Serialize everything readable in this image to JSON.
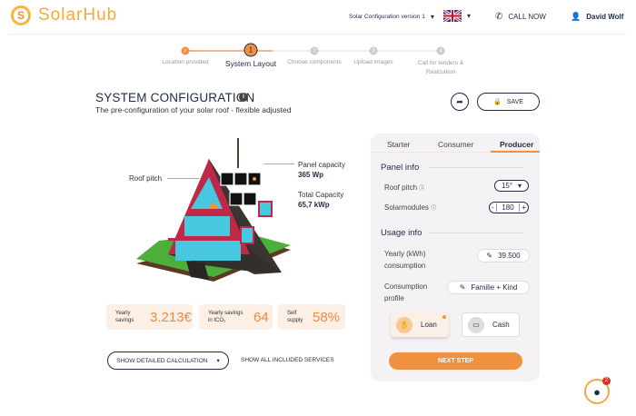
{
  "header": {
    "logo_text": "SolarHub",
    "logo_letter": "S",
    "config_select": "Solar Configuration version 1",
    "call_now": "CALL NOW",
    "user_name": "David Wolf"
  },
  "stepper": {
    "current": 1,
    "steps": [
      {
        "num": "✓",
        "label": "Location provided"
      },
      {
        "num": "1",
        "label": "System Layout"
      },
      {
        "num": "2",
        "label": "Choose components"
      },
      {
        "num": "3",
        "label": "Upload images"
      },
      {
        "num": "4",
        "label": "Call for tenders & Realization"
      }
    ]
  },
  "main": {
    "title": "SYSTEM CONFIGURATION",
    "subtitle": "The pre-configuration of your solar roof - flexible adjusted",
    "save_label": "SAVE"
  },
  "house": {
    "roof_pitch_label": "Roof pitch",
    "panel_capacity_label": "Panel capacity",
    "panel_capacity_value": "365 Wp",
    "total_capacity_label": "Total Capacity",
    "total_capacity_value": "65,7 kWp"
  },
  "stats": [
    {
      "label": "Yearly savings",
      "value": "3.213€"
    },
    {
      "label": "Yearly savings in tCO₂",
      "value": "64"
    },
    {
      "label": "Self supply",
      "value": "58%"
    }
  ],
  "actions": {
    "detailed": "SHOW DETAILED CALCULATION",
    "services": "SHOW ALL INCLUDED SERVICES"
  },
  "panel": {
    "tabs": [
      "Starter",
      "Consumer",
      "Producer"
    ],
    "active_tab": "Producer",
    "panel_info": "Panel info",
    "roof_pitch_label": "Roof pitch",
    "roof_pitch_value": "15°",
    "solarmodules_label": "Solarmodules",
    "solarmodules_value": "180",
    "minus": "-",
    "plus": "+",
    "usage_info": "Usage info",
    "yearly_label": "Yearly (kWh) consumption",
    "yearly_value": "39.500",
    "profile_label": "Consumption profile",
    "profile_value": "Familie + Kind",
    "loan": "Loan",
    "cash": "Cash",
    "next": "NEXT STEP"
  },
  "support": {
    "badge": "2"
  },
  "colors": {
    "accent": "#f0913f",
    "navy": "#1f2a44"
  }
}
